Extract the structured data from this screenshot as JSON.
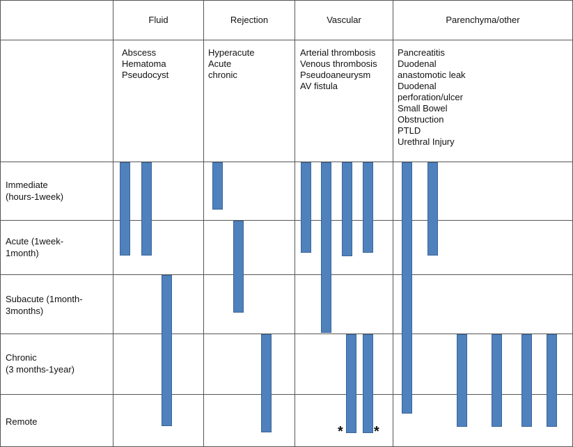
{
  "columns": [
    {
      "key": "fluid",
      "label": "Fluid",
      "items": [
        "Abscess",
        "Hematoma",
        "Pseudocyst"
      ]
    },
    {
      "key": "rejection",
      "label": "Rejection",
      "items": [
        "Hyperacute",
        "Acute",
        "chronic"
      ]
    },
    {
      "key": "vascular",
      "label": "Vascular",
      "items": [
        "Arterial thrombosis",
        "Venous thrombosis",
        "Pseudoaneurysm",
        "AV fistula"
      ]
    },
    {
      "key": "parenchyma",
      "label": "Parenchyma/other",
      "items": [
        "Pancreatitis",
        "Duodenal",
        "anastomotic leak",
        "Duodenal",
        "perforation/ulcer",
        "Small Bowel",
        "Obstruction",
        "PTLD",
        "Urethral Injury"
      ]
    }
  ],
  "rows": [
    {
      "key": "immediate",
      "line1": "Immediate",
      "line2": "(hours-1week)"
    },
    {
      "key": "acute",
      "line1": "Acute (1week-",
      "line2": "1month)"
    },
    {
      "key": "subacute",
      "line1": "Subacute (1month-",
      "line2": "3months)"
    },
    {
      "key": "chronic",
      "line1": "Chronic",
      "line2": "(3 months-1year)"
    },
    {
      "key": "remote",
      "line1": "Remote",
      "line2": ""
    }
  ],
  "timeline_bars": [
    {
      "column": "fluid",
      "slot": 0,
      "from_row": 0,
      "to_row": 1
    },
    {
      "column": "fluid",
      "slot": 1,
      "from_row": 0,
      "to_row": 1
    },
    {
      "column": "fluid",
      "slot": 2,
      "from_row": 2,
      "to_row": 4
    },
    {
      "column": "rejection",
      "slot": 0,
      "from_row": 0,
      "to_row": 0
    },
    {
      "column": "rejection",
      "slot": 1,
      "from_row": 1,
      "to_row": 2
    },
    {
      "column": "rejection",
      "slot": 2,
      "from_row": 3,
      "to_row": 4
    },
    {
      "column": "vascular",
      "slot": 0,
      "from_row": 0,
      "to_row": 1
    },
    {
      "column": "vascular",
      "slot": 1,
      "from_row": 0,
      "to_row": 2
    },
    {
      "column": "vascular",
      "slot": 2,
      "from_row": 0,
      "to_row": 1
    },
    {
      "column": "vascular",
      "slot": 3,
      "from_row": 0,
      "to_row": 1
    },
    {
      "column": "vascular",
      "slot": 4,
      "from_row": 3,
      "to_row": 4
    },
    {
      "column": "vascular",
      "slot": 5,
      "from_row": 3,
      "to_row": 4
    },
    {
      "column": "parenchyma",
      "slot": 0,
      "from_row": 0,
      "to_row": 4
    },
    {
      "column": "parenchyma",
      "slot": 1,
      "from_row": 0,
      "to_row": 1
    },
    {
      "column": "parenchyma",
      "slot": 2,
      "from_row": 3,
      "to_row": 4
    },
    {
      "column": "parenchyma",
      "slot": 3,
      "from_row": 3,
      "to_row": 4
    },
    {
      "column": "parenchyma",
      "slot": 4,
      "from_row": 3,
      "to_row": 4
    },
    {
      "column": "parenchyma",
      "slot": 5,
      "from_row": 3,
      "to_row": 4
    }
  ],
  "annotations": {
    "star": "*"
  }
}
